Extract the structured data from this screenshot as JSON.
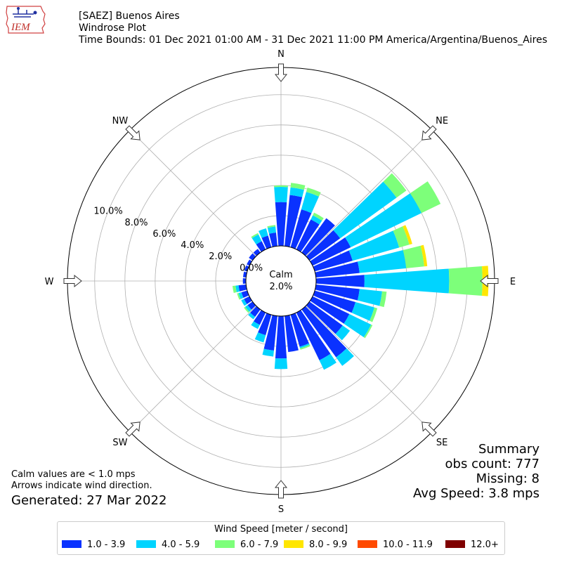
{
  "header": {
    "station": "[SAEZ] Buenos Aires",
    "plot_type": "Windrose Plot",
    "time_bounds": "Time Bounds: 01 Dec 2021 01:00 AM - 31 Dec 2021 11:00 PM America/Argentina/Buenos_Aires"
  },
  "logo": {
    "text": "IEM",
    "icon": "iowa-state-logo",
    "color": "#c0302a"
  },
  "summary": {
    "title": "Summary",
    "obs_count": "obs count: 777",
    "missing": "Missing: 8",
    "avg_speed": "Avg Speed: 3.8 mps"
  },
  "notes": {
    "calm_note": "Calm values are < 1.0 mps",
    "arrow_note": "Arrows indicate wind direction.",
    "generated": "Generated: 27 Mar 2022"
  },
  "chart_data": {
    "type": "windrose",
    "calm_label": "Calm",
    "calm_value_label": "2.0%",
    "calm_pct": 2.0,
    "rmax": 11.8,
    "ring_values": [
      0,
      2,
      4,
      6,
      8,
      10
    ],
    "ring_labels": [
      "0.0%",
      "2.0%",
      "4.0%",
      "6.0%",
      "8.0%",
      "10.0%"
    ],
    "directions": [
      "N",
      "NE",
      "E",
      "SE",
      "S",
      "SW",
      "W",
      "NW"
    ],
    "legend": {
      "title": "Wind Speed [meter / second]",
      "bins": [
        {
          "label": "1.0 - 3.9",
          "color": "#0a32ff"
        },
        {
          "label": "4.0 - 5.9",
          "color": "#00d4ff"
        },
        {
          "label": "6.0 - 7.9",
          "color": "#7dff7a"
        },
        {
          "label": "8.0 - 9.9",
          "color": "#ffe600"
        },
        {
          "label": "10.0 - 11.9",
          "color": "#ff4a00"
        },
        {
          "label": "12.0+",
          "color": "#7f0000"
        }
      ]
    },
    "sectors": [
      {
        "dir": 0,
        "values": [
          2.9,
          1.0,
          0.1,
          0,
          0,
          0
        ]
      },
      {
        "dir": 10,
        "values": [
          3.4,
          0.5,
          0.3,
          0,
          0,
          0
        ]
      },
      {
        "dir": 20,
        "values": [
          2.6,
          1.2,
          0.3,
          0,
          0,
          0
        ]
      },
      {
        "dir": 30,
        "values": [
          2.2,
          0.3,
          0.2,
          0,
          0,
          0
        ]
      },
      {
        "dir": 40,
        "values": [
          2.8,
          0,
          0,
          0,
          0,
          0
        ]
      },
      {
        "dir": 50,
        "values": [
          2.5,
          4.6,
          0.8,
          0,
          0,
          0
        ]
      },
      {
        "dir": 60,
        "values": [
          2.8,
          5.2,
          1.4,
          0,
          0,
          0
        ]
      },
      {
        "dir": 70,
        "values": [
          2.6,
          3.2,
          0.7,
          0.2,
          0,
          0
        ]
      },
      {
        "dir": 80,
        "values": [
          2.9,
          3.1,
          1.2,
          0.2,
          0,
          0
        ]
      },
      {
        "dir": 90,
        "values": [
          3.2,
          5.6,
          2.2,
          0.4,
          0,
          0
        ]
      },
      {
        "dir": 100,
        "values": [
          2.9,
          1.5,
          0.3,
          0,
          0,
          0
        ]
      },
      {
        "dir": 110,
        "values": [
          2.8,
          1.3,
          0.2,
          0,
          0,
          0
        ]
      },
      {
        "dir": 120,
        "values": [
          2.7,
          1.6,
          0.1,
          0,
          0,
          0
        ]
      },
      {
        "dir": 130,
        "values": [
          2.7,
          0.6,
          0,
          0,
          0,
          0
        ]
      },
      {
        "dir": 140,
        "values": [
          3.9,
          0.7,
          0,
          0,
          0,
          0
        ]
      },
      {
        "dir": 150,
        "values": [
          3.5,
          0.7,
          0,
          0,
          0,
          0
        ]
      },
      {
        "dir": 160,
        "values": [
          2.2,
          0.1,
          0.1,
          0,
          0,
          0
        ]
      },
      {
        "dir": 170,
        "values": [
          2.4,
          0,
          0,
          0,
          0,
          0
        ]
      },
      {
        "dir": 180,
        "values": [
          2.8,
          0.7,
          0,
          0,
          0,
          0
        ]
      },
      {
        "dir": 190,
        "values": [
          2.3,
          0.4,
          0,
          0,
          0,
          0
        ]
      },
      {
        "dir": 200,
        "values": [
          1.4,
          0.5,
          0,
          0,
          0,
          0
        ]
      },
      {
        "dir": 210,
        "values": [
          0.9,
          0.3,
          0,
          0,
          0,
          0
        ]
      },
      {
        "dir": 220,
        "values": [
          0.6,
          0.2,
          0,
          0,
          0,
          0
        ]
      },
      {
        "dir": 230,
        "values": [
          0.4,
          0.2,
          0.1,
          0,
          0,
          0
        ]
      },
      {
        "dir": 240,
        "values": [
          0.4,
          0.2,
          0,
          0,
          0,
          0
        ]
      },
      {
        "dir": 250,
        "values": [
          0.4,
          0.2,
          0.1,
          0,
          0,
          0
        ]
      },
      {
        "dir": 260,
        "values": [
          0.5,
          0.2,
          0.2,
          0,
          0,
          0
        ]
      },
      {
        "dir": 270,
        "values": [
          0.2,
          0,
          0,
          0,
          0,
          0
        ]
      },
      {
        "dir": 280,
        "values": [
          0.2,
          0,
          0,
          0,
          0,
          0
        ]
      },
      {
        "dir": 290,
        "values": [
          0.2,
          0,
          0,
          0,
          0,
          0
        ]
      },
      {
        "dir": 300,
        "values": [
          0.2,
          0,
          0,
          0,
          0,
          0
        ]
      },
      {
        "dir": 310,
        "values": [
          0.3,
          0,
          0,
          0,
          0,
          0
        ]
      },
      {
        "dir": 320,
        "values": [
          0.3,
          0,
          0,
          0,
          0,
          0
        ]
      },
      {
        "dir": 330,
        "values": [
          0.6,
          0.5,
          0.1,
          0,
          0,
          0
        ]
      },
      {
        "dir": 340,
        "values": [
          0.8,
          0.5,
          0,
          0,
          0,
          0
        ]
      },
      {
        "dir": 350,
        "values": [
          0.9,
          0.4,
          0.1,
          0,
          0,
          0
        ]
      }
    ]
  }
}
